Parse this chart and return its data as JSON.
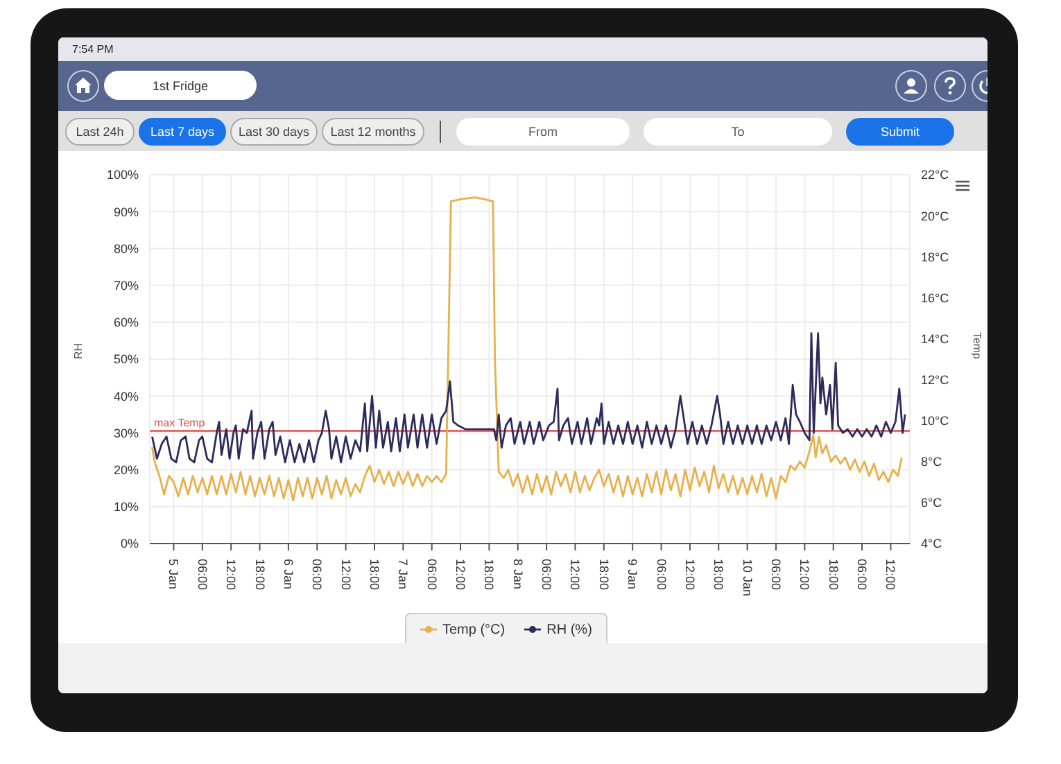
{
  "chart_data": {
    "type": "line",
    "title": "1st Fridge",
    "ylabel": "RH",
    "y2label": "Temp",
    "annotations": [
      "7:54 PM",
      "Last 24h",
      "Last 7 days",
      "Last 30 days",
      "Last 12 months",
      "From",
      "To",
      "Submit"
    ],
    "xlim": [
      "--01-04T19:00",
      "--01-11T10:00"
    ],
    "xticks": [
      {
        "value": "--01-05T00:00",
        "label": "5 Jan"
      },
      {
        "value": "--01-05T06:00",
        "label": "06:00"
      },
      {
        "value": "--01-05T12:00",
        "label": "12:00"
      },
      {
        "value": "--01-05T18:00",
        "label": "18:00"
      },
      {
        "value": "--01-06T00:00",
        "label": "6 Jan"
      },
      {
        "value": "--01-06T06:00",
        "label": "06:00"
      },
      {
        "value": "--01-06T12:00",
        "label": "12:00"
      },
      {
        "value": "--01-06T18:00",
        "label": "18:00"
      },
      {
        "value": "--01-07T00:00",
        "label": "7 Jan"
      },
      {
        "value": "--01-07T06:00",
        "label": "06:00"
      },
      {
        "value": "--01-07T12:00",
        "label": "12:00"
      },
      {
        "value": "--01-07T18:00",
        "label": "18:00"
      },
      {
        "value": "--01-08T00:00",
        "label": "8 Jan"
      },
      {
        "value": "--01-08T06:00",
        "label": "06:00"
      },
      {
        "value": "--01-08T12:00",
        "label": "12:00"
      },
      {
        "value": "--01-08T18:00",
        "label": "18:00"
      },
      {
        "value": "--01-09T00:00",
        "label": "9 Jan"
      },
      {
        "value": "--01-09T06:00",
        "label": "06:00"
      },
      {
        "value": "--01-09T12:00",
        "label": "12:00"
      },
      {
        "value": "--01-09T18:00",
        "label": "18:00"
      },
      {
        "value": "--01-10T00:00",
        "label": "10 Jan"
      },
      {
        "value": "--01-10T06:00",
        "label": "06:00"
      },
      {
        "value": "--01-10T12:00",
        "label": "12:00"
      },
      {
        "value": "--01-10T18:00",
        "label": "18:00"
      },
      {
        "value": "--01-11T00:00",
        "label": "06:00"
      },
      {
        "value": "--01-11T06:00",
        "label": "12:00"
      }
    ],
    "ylim": [
      0,
      100
    ],
    "yticks": [
      {
        "value": 0,
        "label": "0%"
      },
      {
        "value": 10,
        "label": "10%"
      },
      {
        "value": 20,
        "label": "20%"
      },
      {
        "value": 30,
        "label": "30%"
      },
      {
        "value": 40,
        "label": "40%"
      },
      {
        "value": 50,
        "label": "50%"
      },
      {
        "value": 60,
        "label": "60%"
      },
      {
        "value": 70,
        "label": "70%"
      },
      {
        "value": 80,
        "label": "80%"
      },
      {
        "value": 90,
        "label": "90%"
      },
      {
        "value": 100,
        "label": "100%"
      }
    ],
    "y2lim": [
      4,
      22
    ],
    "y2ticks": [
      {
        "value": 4,
        "label": "4°C"
      },
      {
        "value": 6,
        "label": "6°C"
      },
      {
        "value": 8,
        "label": "8°C"
      },
      {
        "value": 10,
        "label": "10°C"
      },
      {
        "value": 12,
        "label": "12°C"
      },
      {
        "value": 14,
        "label": "14°C"
      },
      {
        "value": 16,
        "label": "16°C"
      },
      {
        "value": 18,
        "label": "18°C"
      },
      {
        "value": 20,
        "label": "20°C"
      },
      {
        "value": 22,
        "label": "22°C"
      }
    ],
    "grid": true,
    "legend": "bottom",
    "ref_lines": [
      {
        "axis": "y2",
        "value": 9.5,
        "label": "max Temp",
        "color": "#d9534f"
      }
    ],
    "series": [
      {
        "name": "Temp (°C)",
        "color": "#e8b04a",
        "axis": "y2",
        "x": [
          "--01-04T19:30",
          "--01-04T20:00",
          "--01-04T21:00",
          "--01-04T22:00",
          "--01-04T23:00",
          "--01-05T00:00",
          "--01-05T01:00",
          "--01-05T02:00",
          "--01-05T03:00",
          "--01-05T04:00",
          "--01-05T05:00",
          "--01-05T06:00",
          "--01-05T07:00",
          "--01-05T08:00",
          "--01-05T09:00",
          "--01-05T10:00",
          "--01-05T11:00",
          "--01-05T12:00",
          "--01-05T13:00",
          "--01-05T14:00",
          "--01-05T15:00",
          "--01-05T16:00",
          "--01-05T17:00",
          "--01-05T18:00",
          "--01-05T19:00",
          "--01-05T20:00",
          "--01-05T21:00",
          "--01-05T22:00",
          "--01-05T23:00",
          "--01-06T00:00",
          "--01-06T01:00",
          "--01-06T02:00",
          "--01-06T03:00",
          "--01-06T04:00",
          "--01-06T05:00",
          "--01-06T06:00",
          "--01-06T07:00",
          "--01-06T08:00",
          "--01-06T09:00",
          "--01-06T10:00",
          "--01-06T11:00",
          "--01-06T12:00",
          "--01-06T13:00",
          "--01-06T14:00",
          "--01-06T15:00",
          "--01-06T16:00",
          "--01-06T17:00",
          "--01-06T18:00",
          "--01-06T19:00",
          "--01-06T20:00",
          "--01-06T21:00",
          "--01-06T22:00",
          "--01-06T23:00",
          "--01-07T00:00",
          "--01-07T01:00",
          "--01-07T02:00",
          "--01-07T03:00",
          "--01-07T04:00",
          "--01-07T05:00",
          "--01-07T06:00",
          "--01-07T07:00",
          "--01-07T08:00",
          "--01-07T09:00",
          "--01-07T09:30",
          "--01-07T10:00",
          "--01-07T12:00",
          "--01-07T15:00",
          "--01-07T17:00",
          "--01-07T18:48",
          "--01-07T19:12",
          "--01-07T20:00",
          "--01-07T21:00",
          "--01-07T22:00",
          "--01-07T23:00",
          "--01-08T00:00",
          "--01-08T01:00",
          "--01-08T02:00",
          "--01-08T03:00",
          "--01-08T04:00",
          "--01-08T05:00",
          "--01-08T06:00",
          "--01-08T07:00",
          "--01-08T08:00",
          "--01-08T09:00",
          "--01-08T10:00",
          "--01-08T11:00",
          "--01-08T12:00",
          "--01-08T13:00",
          "--01-08T14:00",
          "--01-08T15:00",
          "--01-08T16:00",
          "--01-08T17:00",
          "--01-08T18:00",
          "--01-08T19:00",
          "--01-08T20:00",
          "--01-08T21:00",
          "--01-08T22:00",
          "--01-08T23:00",
          "--01-09T00:00",
          "--01-09T01:00",
          "--01-09T02:00",
          "--01-09T03:00",
          "--01-09T04:00",
          "--01-09T05:00",
          "--01-09T06:00",
          "--01-09T07:00",
          "--01-09T08:00",
          "--01-09T09:00",
          "--01-09T10:00",
          "--01-09T11:00",
          "--01-09T12:00",
          "--01-09T13:00",
          "--01-09T14:00",
          "--01-09T15:00",
          "--01-09T16:00",
          "--01-09T17:00",
          "--01-09T18:00",
          "--01-09T19:00",
          "--01-09T20:00",
          "--01-09T21:00",
          "--01-09T22:00",
          "--01-09T23:00",
          "--01-10T00:00",
          "--01-10T01:00",
          "--01-10T02:00",
          "--01-10T03:00",
          "--01-10T04:00",
          "--01-10T05:00",
          "--01-10T06:00",
          "--01-10T07:00",
          "--01-10T08:00",
          "--01-10T09:00",
          "--01-10T10:00",
          "--01-10T11:00",
          "--01-10T12:00",
          "--01-10T13:00",
          "--01-10T13:48",
          "--01-10T14:18",
          "--01-10T15:00",
          "--01-10T15:42",
          "--01-10T16:30",
          "--01-10T17:30",
          "--01-10T18:30",
          "--01-10T19:30",
          "--01-10T20:30",
          "--01-10T21:30",
          "--01-10T22:30",
          "--01-10T23:30",
          "--01-11T00:30",
          "--01-11T01:30",
          "--01-11T02:30",
          "--01-11T03:30",
          "--01-11T04:30",
          "--01-11T05:30",
          "--01-11T06:30",
          "--01-11T07:30",
          "--01-11T08:18"
        ],
        "values": [
          8.7,
          8.0,
          7.3,
          6.4,
          7.3,
          7.0,
          6.3,
          7.2,
          6.4,
          7.3,
          6.5,
          7.2,
          6.4,
          7.3,
          6.4,
          7.3,
          6.4,
          7.4,
          6.5,
          7.5,
          6.4,
          7.3,
          6.3,
          7.2,
          6.4,
          7.3,
          6.3,
          7.2,
          6.2,
          7.1,
          6.1,
          7.2,
          6.3,
          7.2,
          6.2,
          7.2,
          6.4,
          7.3,
          6.2,
          7.1,
          6.4,
          7.2,
          6.3,
          6.9,
          6.5,
          7.3,
          7.8,
          7.0,
          7.6,
          6.9,
          7.5,
          6.8,
          7.5,
          6.9,
          7.5,
          6.8,
          7.4,
          6.8,
          7.3,
          7.0,
          7.3,
          7.0,
          7.4,
          14,
          20.7,
          20.8,
          20.9,
          20.8,
          20.7,
          13,
          7.5,
          7.2,
          7.6,
          6.8,
          7.4,
          6.5,
          7.3,
          6.4,
          7.4,
          6.5,
          7.3,
          6.4,
          7.5,
          6.8,
          7.4,
          6.5,
          7.5,
          6.5,
          7.3,
          6.6,
          7.2,
          7.6,
          6.8,
          7.4,
          6.5,
          7.3,
          6.3,
          7.3,
          6.4,
          7.2,
          6.3,
          7.4,
          6.5,
          7.5,
          6.4,
          7.6,
          6.6,
          7.4,
          6.3,
          7.6,
          6.6,
          7.7,
          6.8,
          7.5,
          6.5,
          7.8,
          6.7,
          7.4,
          6.5,
          7.3,
          6.4,
          7.2,
          6.4,
          7.3,
          6.5,
          7.4,
          6.3,
          7.2,
          6.2,
          7.3,
          7.0,
          7.8,
          7.6,
          8.0,
          7.7,
          8.5,
          9.3,
          8.2,
          9.2,
          8.4,
          8.8,
          8.0,
          8.3,
          7.9,
          8.2,
          7.6,
          8.1,
          7.5,
          8.0,
          7.3,
          7.9,
          7.1,
          7.5,
          7.0,
          7.6,
          7.3,
          8.2
        ]
      },
      {
        "name": "RH (%)",
        "color": "#2e2a5a",
        "x": [
          "--01-04T19:30",
          "--01-04T20:30",
          "--01-04T21:30",
          "--01-04T22:30",
          "--01-04T23:30",
          "--01-05T00:30",
          "--01-05T01:30",
          "--01-05T02:30",
          "--01-05T03:18",
          "--01-05T04:18",
          "--01-05T05:18",
          "--01-05T06:00",
          "--01-05T07:00",
          "--01-05T08:00",
          "--01-05T09:00",
          "--01-05T09:30",
          "--01-05T10:00",
          "--01-05T11:00",
          "--01-05T11:42",
          "--01-05T12:30",
          "--01-05T13:00",
          "--01-05T13:36",
          "--01-05T14:30",
          "--01-05T15:18",
          "--01-05T16:18",
          "--01-05T16:36",
          "--01-05T17:30",
          "--01-05T18:18",
          "--01-05T19:00",
          "--01-05T20:00",
          "--01-05T20:42",
          "--01-05T21:18",
          "--01-05T22:18",
          "--01-05T23:18",
          "--01-06T00:18",
          "--01-06T01:18",
          "--01-06T02:18",
          "--01-06T03:18",
          "--01-06T04:18",
          "--01-06T05:18",
          "--01-06T06:18",
          "--01-06T07:00",
          "--01-06T07:48",
          "--01-06T08:30",
          "--01-06T09:00",
          "--01-06T10:00",
          "--01-06T11:00",
          "--01-06T12:00",
          "--01-06T13:00",
          "--01-06T14:00",
          "--01-06T15:00",
          "--01-06T16:00",
          "--01-06T16:30",
          "--01-06T17:30",
          "--01-06T18:18",
          "--01-06T19:00",
          "--01-06T19:48",
          "--01-06T20:48",
          "--01-06T21:30",
          "--01-06T22:30",
          "--01-06T23:18",
          "--01-07T00:18",
          "--01-07T01:00",
          "--01-07T02:12",
          "--01-07T03:00",
          "--01-07T04:00",
          "--01-07T05:00",
          "--01-07T06:00",
          "--01-07T07:00",
          "--01-07T08:00",
          "--01-07T09:00",
          "--01-07T09:48",
          "--01-07T10:30",
          "--01-07T11:30",
          "--01-07T13:00",
          "--01-07T16:00",
          "--01-07T19:00",
          "--01-07T19:30",
          "--01-07T20:00",
          "--01-07T20:36",
          "--01-07T21:30",
          "--01-07T22:30",
          "--01-07T23:18",
          "--01-08T00:30",
          "--01-08T01:18",
          "--01-08T02:30",
          "--01-08T03:18",
          "--01-08T04:30",
          "--01-08T05:18",
          "--01-08T06:30",
          "--01-08T07:30",
          "--01-08T08:18",
          "--01-08T08:36",
          "--01-08T09:30",
          "--01-08T10:30",
          "--01-08T11:18",
          "--01-08T12:30",
          "--01-08T13:18",
          "--01-08T14:30",
          "--01-08T15:18",
          "--01-08T16:30",
          "--01-08T17:00",
          "--01-08T17:30",
          "--01-08T18:00",
          "--01-08T19:00",
          "--01-08T20:00",
          "--01-08T21:00",
          "--01-08T22:00",
          "--01-08T23:00",
          "--01-09T00:00",
          "--01-09T01:00",
          "--01-09T02:00",
          "--01-09T03:00",
          "--01-09T04:00",
          "--01-09T05:00",
          "--01-09T06:00",
          "--01-09T07:00",
          "--01-09T08:00",
          "--01-09T09:00",
          "--01-09T10:00",
          "--01-09T10:42",
          "--01-09T11:30",
          "--01-09T12:30",
          "--01-09T13:30",
          "--01-09T14:30",
          "--01-09T15:30",
          "--01-09T16:30",
          "--01-09T17:42",
          "--01-09T18:18",
          "--01-09T19:00",
          "--01-09T20:00",
          "--01-09T21:00",
          "--01-09T22:00",
          "--01-09T23:00",
          "--01-10T00:00",
          "--01-10T01:00",
          "--01-10T02:00",
          "--01-10T03:00",
          "--01-10T04:00",
          "--01-10T05:00",
          "--01-10T06:00",
          "--01-10T07:00",
          "--01-10T08:00",
          "--01-10T08:42",
          "--01-10T09:30",
          "--01-10T10:12",
          "--01-10T11:00",
          "--01-10T12:00",
          "--01-10T13:00",
          "--01-10T13:24",
          "--01-10T13:54",
          "--01-10T14:48",
          "--01-10T15:18",
          "--01-10T15:42",
          "--01-10T16:30",
          "--01-10T17:18",
          "--01-10T17:48",
          "--01-10T18:30",
          "--01-10T19:00",
          "--01-10T20:00",
          "--01-10T21:00",
          "--01-10T22:00",
          "--01-10T23:00",
          "--01-11T00:00",
          "--01-11T01:00",
          "--01-11T02:00",
          "--01-11T03:00",
          "--01-11T04:00",
          "--01-11T05:00",
          "--01-11T06:00",
          "--01-11T07:00",
          "--01-11T07:48",
          "--01-11T08:30",
          "--01-11T09:00"
        ],
        "values": [
          29,
          23,
          27,
          29,
          23,
          22,
          28,
          29,
          23,
          22,
          28,
          29,
          23,
          22,
          30,
          33,
          24,
          31,
          23,
          30,
          32,
          23,
          31,
          30,
          36,
          23,
          30,
          33,
          23,
          31,
          33,
          24,
          29,
          22,
          28,
          22,
          27,
          22,
          28,
          22,
          28,
          30,
          36,
          31,
          23,
          29,
          22,
          29,
          23,
          28,
          25,
          38,
          25,
          40,
          26,
          36,
          26,
          33,
          25,
          34,
          25,
          35,
          26,
          35,
          26,
          35,
          26,
          35,
          27,
          34,
          36,
          44,
          33,
          32,
          31,
          31,
          31,
          28,
          35,
          26,
          32,
          34,
          27,
          33,
          27,
          33,
          27,
          33,
          28,
          32,
          33,
          42,
          28,
          32,
          34,
          27,
          33,
          27,
          34,
          27,
          34,
          32,
          38,
          27,
          33,
          27,
          32,
          27,
          33,
          27,
          32,
          26,
          33,
          27,
          32,
          27,
          32,
          26,
          31,
          40,
          34,
          27,
          33,
          27,
          32,
          27,
          32,
          40,
          35,
          27,
          33,
          27,
          32,
          27,
          32,
          27,
          32,
          27,
          32,
          28,
          33,
          28,
          34,
          27,
          43,
          35,
          33,
          30,
          28,
          57,
          30,
          57,
          38,
          45,
          35,
          43,
          31,
          49,
          32,
          30,
          31,
          29,
          31,
          29,
          31,
          29,
          32,
          29,
          33,
          30,
          33,
          42,
          30,
          35
        ]
      }
    ]
  }
}
